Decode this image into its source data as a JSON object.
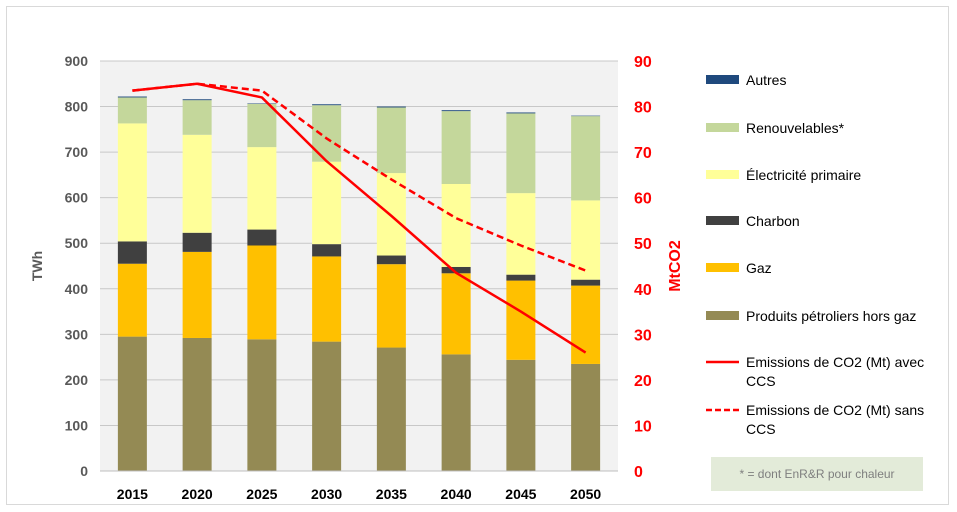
{
  "chart_data": {
    "type": "bar",
    "stacked": true,
    "categories": [
      "2015",
      "2020",
      "2025",
      "2030",
      "2035",
      "2040",
      "2045",
      "2050"
    ],
    "y_left": {
      "label": "TWh",
      "ylim": [
        0,
        900
      ],
      "ticks": [
        "0",
        "100",
        "200",
        "300",
        "400",
        "500",
        "600",
        "700",
        "800",
        "900"
      ]
    },
    "y_right": {
      "label": "MtCO2",
      "ylim": [
        0,
        90
      ],
      "ticks": [
        "0",
        "10",
        "20",
        "30",
        "40",
        "50",
        "60",
        "70",
        "80",
        "90"
      ]
    },
    "grid": true,
    "legend_position": "right",
    "series": [
      {
        "name": "Produits pétroliers hors gaz",
        "color": "#948a54",
        "values": [
          295,
          292,
          289,
          284,
          271,
          256,
          244,
          235
        ]
      },
      {
        "name": "Gaz",
        "color": "#ffc000",
        "values": [
          160,
          189,
          206,
          187,
          183,
          178,
          174,
          172
        ]
      },
      {
        "name": "Charbon",
        "color": "#404040",
        "values": [
          49,
          42,
          35,
          27,
          19,
          14,
          13,
          13
        ]
      },
      {
        "name": "Électricité primaire",
        "color": "#ffff99",
        "values": [
          259,
          215,
          181,
          181,
          181,
          182,
          179,
          174
        ]
      },
      {
        "name": "Renouvelables*",
        "color": "#c4d79b",
        "values": [
          57,
          76,
          95,
          124,
          144,
          160,
          175,
          185
        ]
      },
      {
        "name": "Autres",
        "color": "#1f497d",
        "values": [
          2,
          2,
          1,
          2,
          2,
          2,
          2,
          1
        ]
      }
    ],
    "lines": [
      {
        "name": "Emissions de CO2 (Mt) avec CCS",
        "color": "#ff0000",
        "style": "solid",
        "axis": "right",
        "values": [
          83.5,
          85,
          82,
          68,
          56,
          43.5,
          35,
          26
        ]
      },
      {
        "name": "Emissions de CO2 (Mt) sans CCS",
        "color": "#ff0000",
        "style": "dashed",
        "axis": "right",
        "values": [
          83.5,
          85,
          83.5,
          73,
          64,
          55.5,
          49.5,
          44
        ]
      }
    ],
    "legend_order": [
      "Autres",
      "Renouvelables*",
      "Électricité primaire",
      "Charbon",
      "Gaz",
      "Produits pétroliers hors gaz",
      "Emissions de CO2 (Mt) avec CCS",
      "Emissions de CO2 (Mt) sans CCS"
    ],
    "note": "* = dont EnR&R pour chaleur"
  }
}
